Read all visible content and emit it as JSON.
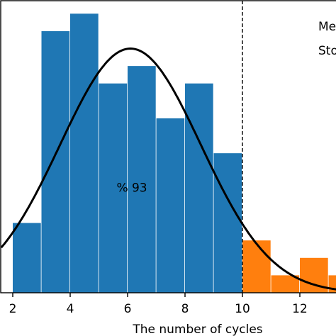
{
  "chart_data": {
    "type": "bar",
    "xlabel": "The number of cycles",
    "ylabel": "",
    "xlim": [
      1.6,
      13.3
    ],
    "ylim": [
      0,
      16.5
    ],
    "xticks": [
      2,
      4,
      6,
      8,
      10,
      12
    ],
    "bin_width": 0.98,
    "series": [
      {
        "name": "",
        "color": "#1f77b4",
        "bins": [
          {
            "x": 2.0,
            "value": 4
          },
          {
            "x": 3.0,
            "value": 15
          },
          {
            "x": 4.0,
            "value": 16
          },
          {
            "x": 5.0,
            "value": 12
          },
          {
            "x": 6.0,
            "value": 13
          },
          {
            "x": 7.0,
            "value": 10
          },
          {
            "x": 8.0,
            "value": 12
          },
          {
            "x": 9.0,
            "value": 8
          }
        ]
      },
      {
        "name": "",
        "color": "#ff7f0e",
        "bins": [
          {
            "x": 10.0,
            "value": 3
          },
          {
            "x": 11.0,
            "value": 1
          },
          {
            "x": 12.0,
            "value": 2
          },
          {
            "x": 13.0,
            "value": 1
          }
        ]
      }
    ],
    "fitted_curve": {
      "type": "normal",
      "mean": 6.1,
      "std": 2.45,
      "peak": 14.0,
      "color": "#000000"
    },
    "threshold_line": {
      "x": 10.0,
      "style": "dashed"
    },
    "annotation": {
      "text": "% 93",
      "x": 6.1,
      "y": 6.0
    },
    "stats_labels": [
      "Me",
      "Sto"
    ]
  }
}
